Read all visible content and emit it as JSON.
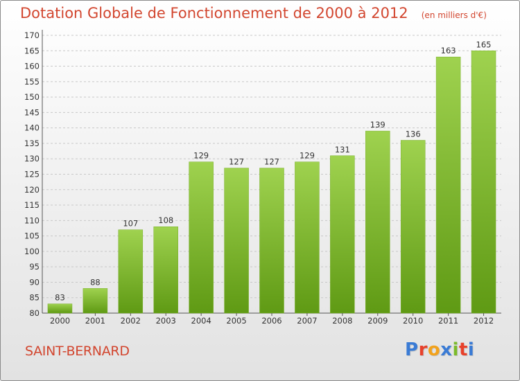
{
  "header": {
    "title": "Dotation Globale de Fonctionnement de 2000 à 2012",
    "unit": "(en milliers d'€)"
  },
  "footer": {
    "commune": "SAINT-BERNARD",
    "logo_text": "Proxiti"
  },
  "colors": {
    "title": "#d2452e",
    "bar_light": "#9fd24f",
    "bar_dark": "#5f9a14",
    "logo_letters": [
      "#3a7bd5",
      "#e8412b",
      "#f2a21c",
      "#3a7bd5",
      "#7bbb2a",
      "#e8412b",
      "#3a7bd5"
    ]
  },
  "chart_data": {
    "type": "bar",
    "title": "Dotation Globale de Fonctionnement de 2000 à 2012",
    "subtitle": "(en milliers d'€)",
    "categories": [
      "2000",
      "2001",
      "2002",
      "2003",
      "2004",
      "2005",
      "2006",
      "2007",
      "2008",
      "2009",
      "2010",
      "2011",
      "2012"
    ],
    "values": [
      83,
      88,
      107,
      108,
      129,
      127,
      127,
      129,
      131,
      139,
      136,
      163,
      165
    ],
    "ylim": [
      80,
      170
    ],
    "yticks": [
      80,
      85,
      90,
      95,
      100,
      105,
      110,
      115,
      120,
      125,
      130,
      135,
      140,
      145,
      150,
      155,
      160,
      165,
      170
    ],
    "grid": true,
    "data_labels": true
  }
}
